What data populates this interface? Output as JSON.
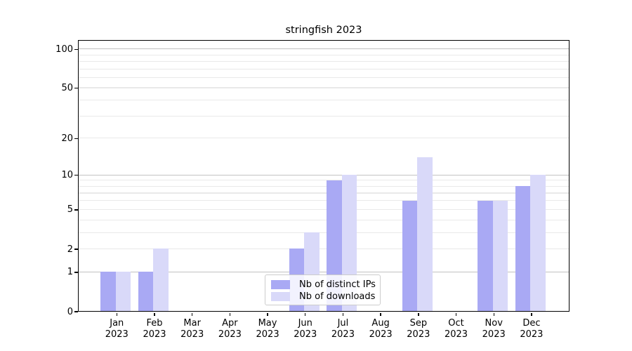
{
  "chart_data": {
    "type": "bar",
    "title": "stringfish 2023",
    "categories": [
      "Jan 2023",
      "Feb 2023",
      "Mar 2023",
      "Apr 2023",
      "May 2023",
      "Jun 2023",
      "Jul 2023",
      "Aug 2023",
      "Sep 2023",
      "Oct 2023",
      "Nov 2023",
      "Dec 2023"
    ],
    "series": [
      {
        "name": "Nb of distinct IPs",
        "color": "#a9a9f4",
        "values": [
          1,
          1,
          0,
          0,
          0,
          2,
          9,
          0,
          6,
          0,
          6,
          8
        ]
      },
      {
        "name": "Nb of downloads",
        "color": "#d9d9f9",
        "values": [
          1,
          2,
          0,
          0,
          0,
          3,
          10,
          0,
          14,
          0,
          6,
          10
        ]
      }
    ],
    "yscale": "log1p",
    "y_ticks": [
      0,
      1,
      2,
      5,
      10,
      20,
      50,
      100
    ],
    "y_gridlines_major": [
      1,
      10,
      100
    ],
    "y_gridlines_minor": [
      2,
      3,
      4,
      5,
      6,
      7,
      8,
      9,
      20,
      30,
      40,
      50,
      60,
      70,
      80,
      90
    ],
    "ylim": [
      0,
      115
    ],
    "grid": true,
    "legend": {
      "position": "lower center"
    }
  },
  "colors": {
    "major_grid": "#c2c2c2",
    "minor_grid": "#e9e9e9",
    "spine": "#000000",
    "background": "#ffffff"
  }
}
